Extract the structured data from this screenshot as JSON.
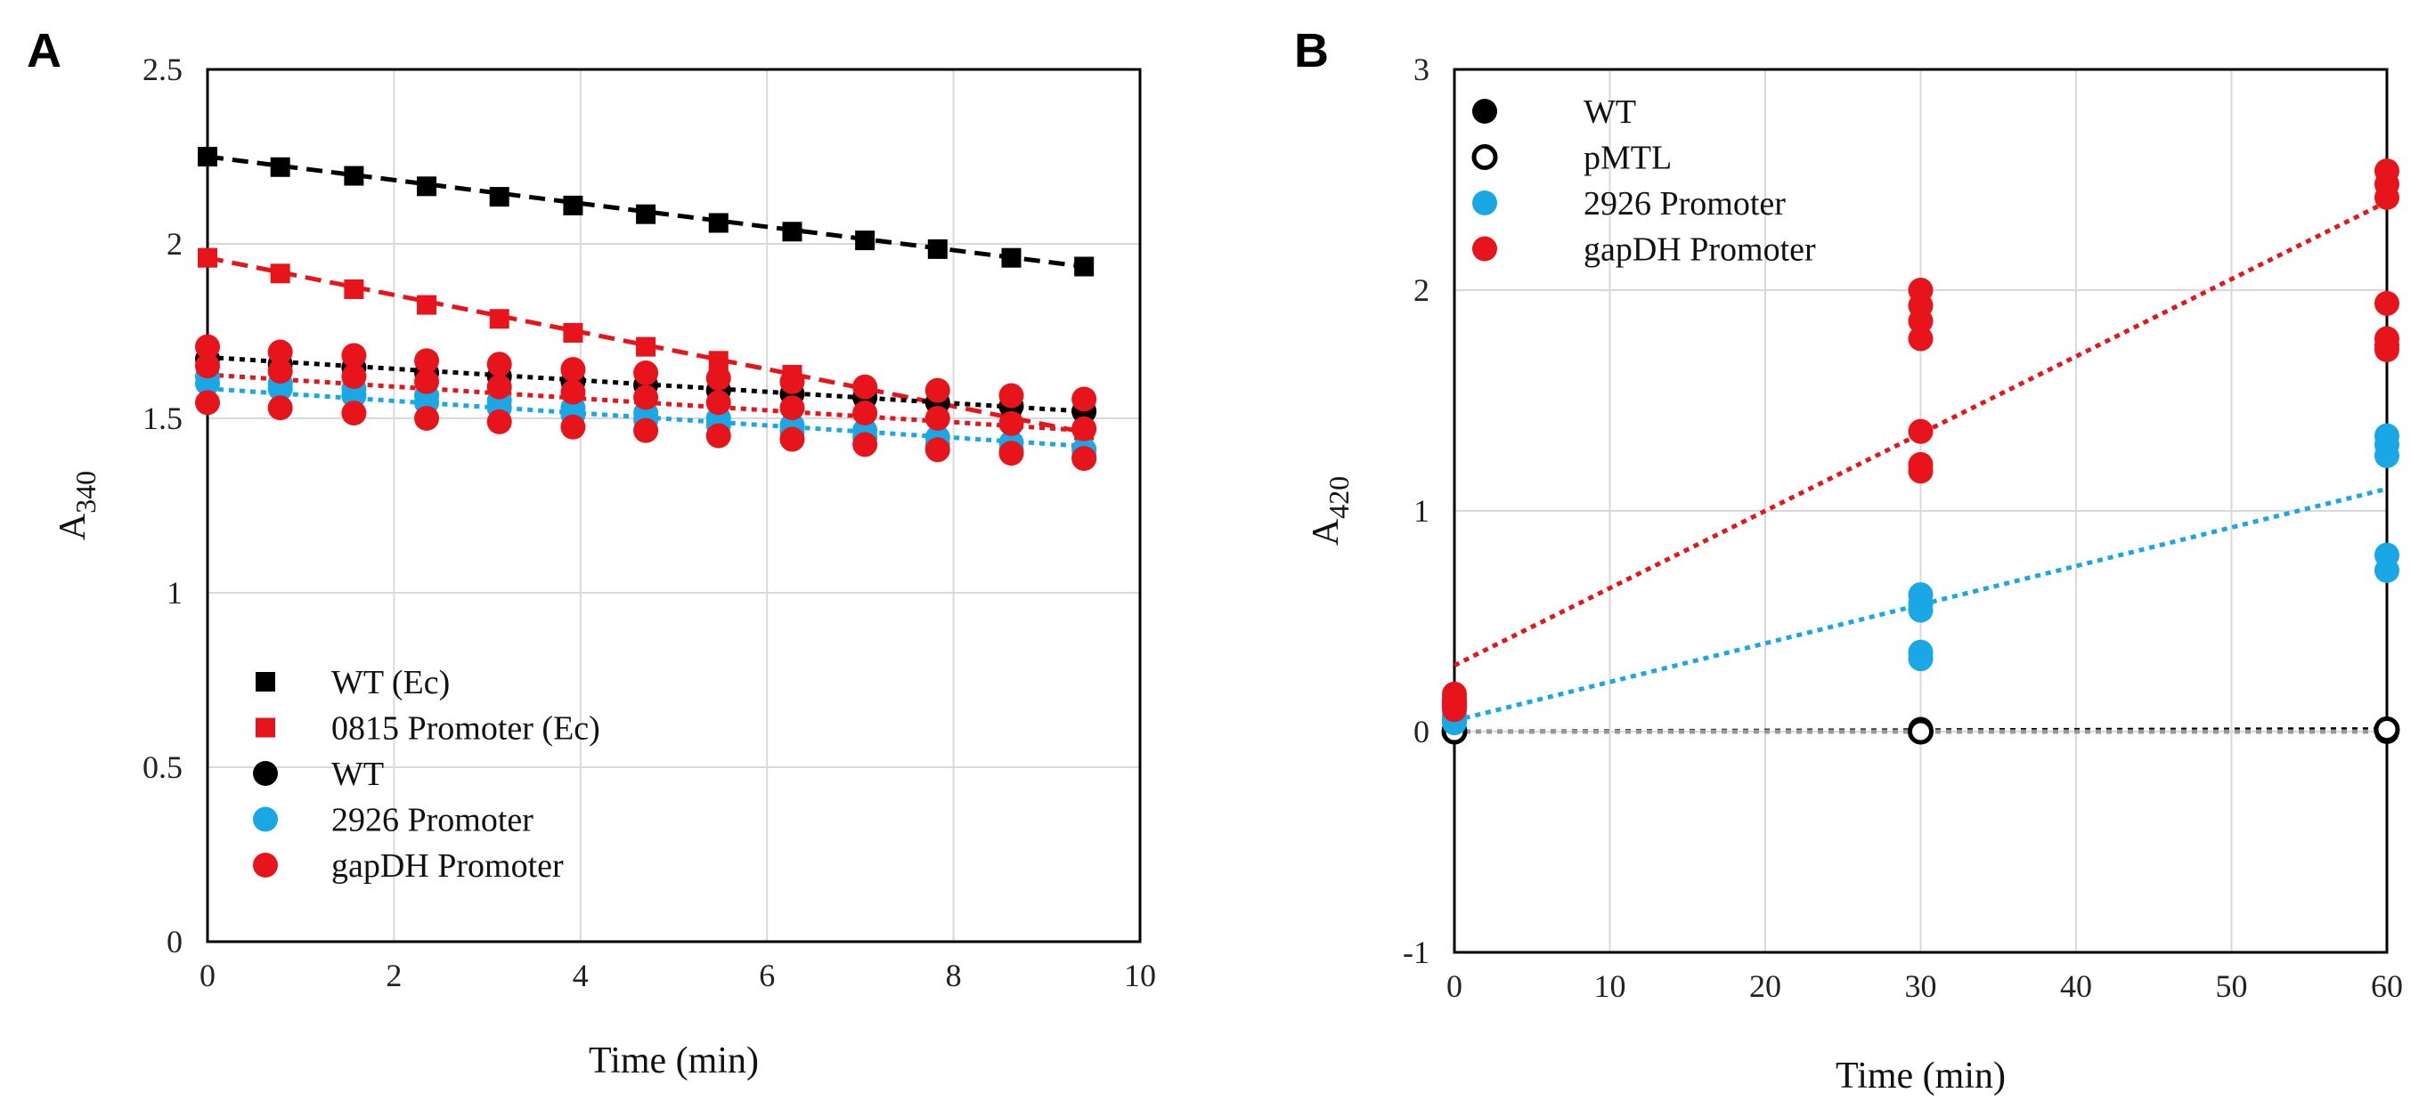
{
  "chart_data": [
    {
      "panel": "A",
      "type": "scatter",
      "xlabel": "Time (min)",
      "ylabel": "A340",
      "ylabel_main": "A",
      "ylabel_sub": "340",
      "xlim": [
        0,
        10
      ],
      "ylim": [
        0,
        2.5
      ],
      "xticks": [
        0,
        2,
        4,
        6,
        8,
        10
      ],
      "yticks": [
        0,
        0.5,
        1,
        1.5,
        2,
        2.5
      ],
      "ytick_labels": [
        "0",
        "0.5",
        "1",
        "1.5",
        "2",
        "2.5"
      ],
      "grid": true,
      "legend_position": "bottom-left",
      "series": [
        {
          "name": "WT (Ec)",
          "color": "#000000",
          "marker": "square",
          "x": [
            0,
            0.78,
            1.57,
            2.35,
            3.13,
            3.92,
            4.7,
            5.48,
            6.27,
            7.05,
            7.83,
            8.62,
            9.4
          ],
          "replicates": [
            [
              2.25,
              2.22,
              2.195,
              2.165,
              2.135,
              2.11,
              2.085,
              2.06,
              2.035,
              2.01,
              1.985,
              1.96,
              1.935
            ]
          ],
          "trendline": [
            [
              0,
              2.25
            ],
            [
              9.4,
              1.935
            ]
          ],
          "trend_color": "#000000"
        },
        {
          "name": "0815 Promoter (Ec)",
          "color": "#e8141b",
          "marker": "square",
          "x": [
            0,
            0.78,
            1.57,
            2.35,
            3.13,
            3.92,
            4.7,
            5.48,
            6.27,
            7.05,
            7.83,
            8.62,
            9.4
          ],
          "replicates": [
            [
              1.96,
              1.915,
              1.87,
              1.825,
              1.785,
              1.745,
              1.705,
              1.665,
              1.625,
              1.585,
              1.545,
              1.505,
              1.465
            ]
          ],
          "trendline": [
            [
              0,
              1.96
            ],
            [
              9.4,
              1.46
            ]
          ],
          "trend_color": "#e8141b"
        },
        {
          "name": "WT",
          "color": "#000000",
          "marker": "circle",
          "x": [
            0,
            0.78,
            1.57,
            2.35,
            3.13,
            3.92,
            4.7,
            5.48,
            6.27,
            7.05,
            7.83,
            8.62,
            9.4
          ],
          "replicates": [
            [
              1.67,
              1.655,
              1.645,
              1.63,
              1.62,
              1.605,
              1.595,
              1.58,
              1.57,
              1.56,
              1.545,
              1.535,
              1.52
            ]
          ],
          "trendline": [
            [
              0,
              1.675
            ],
            [
              9.4,
              1.52
            ]
          ],
          "trend_color": "#000000"
        },
        {
          "name": "2926 Promoter",
          "color": "#1aa7e6",
          "marker": "circle",
          "x": [
            0,
            0.78,
            1.57,
            2.35,
            3.13,
            3.92,
            4.7,
            5.48,
            6.27,
            7.05,
            7.83,
            8.62,
            9.4
          ],
          "replicates": [
            [
              1.62,
              1.6,
              1.585,
              1.565,
              1.55,
              1.53,
              1.515,
              1.5,
              1.48,
              1.465,
              1.445,
              1.43,
              1.41
            ],
            [
              1.6,
              1.585,
              1.565,
              1.545,
              1.53,
              1.51,
              1.495,
              1.48,
              1.46,
              1.445,
              1.425,
              1.41,
              1.39
            ]
          ],
          "trendline": [
            [
              0,
              1.585
            ],
            [
              9.4,
              1.42
            ]
          ],
          "trend_color": "#1aa7e6"
        },
        {
          "name": "gapDH Promoter",
          "color": "#e8141b",
          "marker": "circle",
          "x": [
            0,
            0.78,
            1.57,
            2.35,
            3.13,
            3.92,
            4.7,
            5.48,
            6.27,
            7.05,
            7.83,
            8.62,
            9.4
          ],
          "replicates": [
            [
              1.705,
              1.69,
              1.68,
              1.665,
              1.655,
              1.64,
              1.63,
              1.615,
              1.605,
              1.59,
              1.58,
              1.565,
              1.555
            ],
            [
              1.65,
              1.635,
              1.62,
              1.605,
              1.59,
              1.575,
              1.56,
              1.545,
              1.53,
              1.515,
              1.5,
              1.485,
              1.47
            ],
            [
              1.545,
              1.53,
              1.515,
              1.5,
              1.49,
              1.475,
              1.465,
              1.45,
              1.44,
              1.425,
              1.41,
              1.4,
              1.385
            ]
          ],
          "trendline": [
            [
              0,
              1.625
            ],
            [
              9.4,
              1.465
            ]
          ],
          "trend_color": "#e8141b"
        }
      ]
    },
    {
      "panel": "B",
      "type": "scatter",
      "xlabel": "Time (min)",
      "ylabel": "A420",
      "ylabel_main": "A",
      "ylabel_sub": "420",
      "xlim": [
        0,
        60
      ],
      "ylim": [
        -1,
        3
      ],
      "xticks": [
        0,
        10,
        20,
        30,
        40,
        50,
        60
      ],
      "yticks": [
        -1,
        0,
        1,
        2,
        3
      ],
      "ytick_labels": [
        "-1",
        "0",
        "1",
        "2",
        "3"
      ],
      "grid": true,
      "legend_position": "top-left",
      "series": [
        {
          "name": "WT",
          "color": "#000000",
          "marker": "circle",
          "x": [
            0,
            30,
            60
          ],
          "replicates": [
            [
              0.0,
              0.0,
              0.0
            ],
            [
              0.01,
              0.01,
              0.01
            ]
          ],
          "trendline": [
            [
              0,
              0.0
            ],
            [
              60,
              0.01
            ]
          ],
          "trend_color": "#000000"
        },
        {
          "name": "pMTL",
          "color": "#000000",
          "marker": "open-circle",
          "x": [
            0,
            30,
            60
          ],
          "replicates": [
            [
              0.0,
              0.0,
              0.01
            ]
          ],
          "trendline": [
            [
              0,
              0.0
            ],
            [
              60,
              0.0
            ]
          ],
          "trend_color": "#999999"
        },
        {
          "name": "2926 Promoter",
          "color": "#1aa7e6",
          "marker": "circle",
          "x": [
            0,
            30,
            60
          ],
          "replicates": [
            [
              0.05,
              0.62,
              1.34
            ],
            [
              0.07,
              0.58,
              1.3
            ],
            [
              0.04,
              0.55,
              1.25
            ],
            [
              0.06,
              0.36,
              0.8
            ],
            [
              0.05,
              0.33,
              0.73
            ]
          ],
          "trendline": [
            [
              0,
              0.05
            ],
            [
              60,
              1.1
            ]
          ],
          "trend_color": "#1aa7e6"
        },
        {
          "name": "gapDH Promoter",
          "color": "#e8141b",
          "marker": "circle",
          "x": [
            0,
            30,
            60
          ],
          "replicates": [
            [
              0.17,
              2.0,
              2.54
            ],
            [
              0.14,
              1.93,
              2.48
            ],
            [
              0.12,
              1.86,
              2.42
            ],
            [
              0.1,
              1.78,
              1.94
            ],
            [
              0.13,
              1.36,
              1.78
            ],
            [
              0.11,
              1.21,
              1.75
            ],
            [
              0.15,
              1.18,
              1.73
            ]
          ],
          "trendline": [
            [
              0,
              0.3
            ],
            [
              60,
              2.4
            ]
          ],
          "trend_color": "#e8141b"
        }
      ]
    }
  ]
}
